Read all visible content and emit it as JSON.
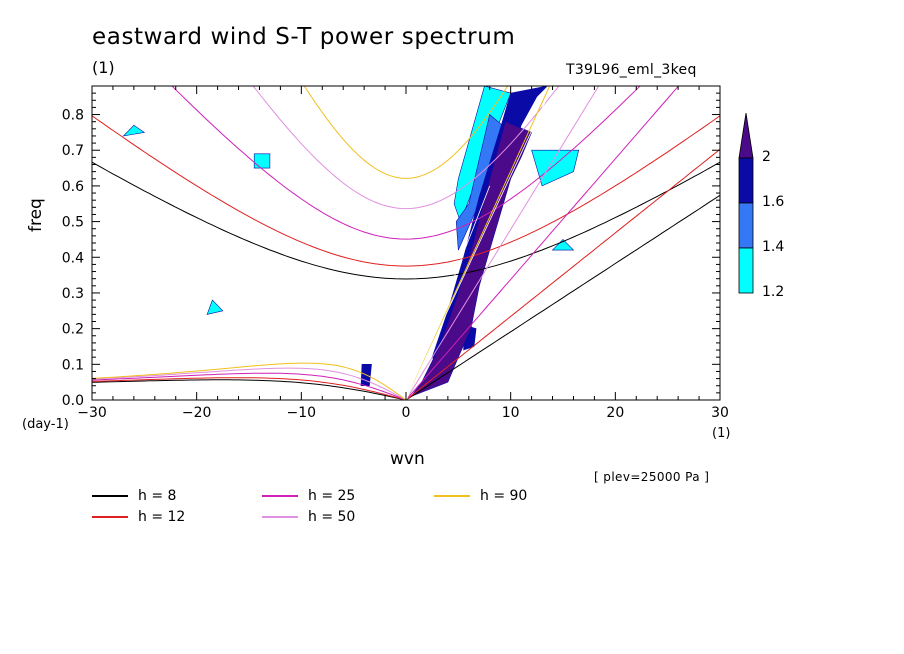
{
  "header": {
    "title": "eastward wind S-T power spectrum",
    "unit_top": "(1)",
    "experiment": "T39L96_eml_3keq"
  },
  "footer": {
    "plev": "[ plev=25000 Pa ]"
  },
  "chart_data": {
    "type": "heatmap",
    "title": "eastward wind S-T power spectrum",
    "xlabel": "wvn",
    "ylabel": "freq",
    "x_unit": "(1)",
    "y_unit": "(day-1)",
    "xlim": [
      -30,
      30
    ],
    "ylim": [
      0,
      0.88
    ],
    "x_ticks": [
      -30,
      -20,
      -10,
      0,
      10,
      20,
      30
    ],
    "y_ticks": [
      0.0,
      0.1,
      0.2,
      0.3,
      0.4,
      0.5,
      0.6,
      0.7,
      0.8
    ],
    "y_tick_labels": [
      "0.0",
      "0.1",
      "0.2",
      "0.3",
      "0.4",
      "0.5",
      "0.6",
      "0.7",
      "0.8"
    ],
    "colorbar": {
      "levels": [
        "1.2",
        "1.4",
        "1.6",
        "2"
      ],
      "colors": [
        "#00ffff",
        "#3478f6",
        "#0a0aa6",
        "#4b0a8a"
      ]
    },
    "shaded_regions": [
      {
        "level": 2,
        "points": [
          [
            0.5,
            0.01
          ],
          [
            4,
            0.05
          ],
          [
            5,
            0.12
          ],
          [
            6.2,
            0.2
          ],
          [
            7,
            0.32
          ],
          [
            8,
            0.42
          ],
          [
            9,
            0.52
          ],
          [
            10,
            0.62
          ],
          [
            11,
            0.68
          ],
          [
            12,
            0.75
          ],
          [
            9.5,
            0.78
          ],
          [
            8,
            0.62
          ],
          [
            6.5,
            0.45
          ],
          [
            5,
            0.3
          ],
          [
            3.2,
            0.15
          ],
          [
            1.5,
            0.05
          ]
        ]
      },
      {
        "level": 1.6,
        "points": [
          [
            3,
            0.1
          ],
          [
            5.5,
            0.17
          ],
          [
            6.5,
            0.3
          ],
          [
            7.5,
            0.42
          ],
          [
            8.5,
            0.55
          ],
          [
            10,
            0.66
          ],
          [
            11,
            0.77
          ],
          [
            12.5,
            0.85
          ],
          [
            13.5,
            0.88
          ],
          [
            10,
            0.86
          ],
          [
            9,
            0.76
          ],
          [
            7,
            0.57
          ],
          [
            5.5,
            0.4
          ],
          [
            4,
            0.25
          ],
          [
            2.5,
            0.12
          ]
        ]
      },
      {
        "level": 1.6,
        "points": [
          [
            -4.3,
            0.04
          ],
          [
            -3.5,
            0.04
          ],
          [
            -3.3,
            0.1
          ],
          [
            -4.2,
            0.1
          ]
        ]
      },
      {
        "level": 1.6,
        "points": [
          [
            5.5,
            0.14
          ],
          [
            6.5,
            0.15
          ],
          [
            6.7,
            0.2
          ],
          [
            5.6,
            0.21
          ]
        ]
      },
      {
        "level": 1.4,
        "points": [
          [
            5,
            0.42
          ],
          [
            10,
            0.75
          ],
          [
            8,
            0.8
          ],
          [
            6,
            0.55
          ],
          [
            4.8,
            0.5
          ]
        ]
      },
      {
        "level": 1.2,
        "points": [
          [
            5.2,
            0.5
          ],
          [
            10,
            0.86
          ],
          [
            7.5,
            0.88
          ],
          [
            5,
            0.62
          ],
          [
            4.6,
            0.55
          ]
        ]
      },
      {
        "level": 1.2,
        "points": [
          [
            13,
            0.6
          ],
          [
            16,
            0.64
          ],
          [
            16.5,
            0.7
          ],
          [
            12,
            0.7
          ]
        ]
      },
      {
        "level": 1.2,
        "points": [
          [
            -14.5,
            0.65
          ],
          [
            -13,
            0.65
          ],
          [
            -13,
            0.69
          ],
          [
            -14.5,
            0.69
          ]
        ]
      },
      {
        "level": 1.2,
        "points": [
          [
            -27,
            0.74
          ],
          [
            -25,
            0.75
          ],
          [
            -26,
            0.77
          ]
        ]
      },
      {
        "level": 1.2,
        "points": [
          [
            -19,
            0.24
          ],
          [
            -17.5,
            0.25
          ],
          [
            -18.5,
            0.28
          ]
        ]
      },
      {
        "level": 1.2,
        "points": [
          [
            14,
            0.42
          ],
          [
            16,
            0.42
          ],
          [
            15,
            0.45
          ]
        ]
      }
    ],
    "dispersion_curves": [
      {
        "name": "h = 8",
        "color": "#000000"
      },
      {
        "name": "h = 12",
        "color": "#e02020"
      },
      {
        "name": "h = 25",
        "color": "#d020b8"
      },
      {
        "name": "h = 50",
        "color": "#e090e0"
      },
      {
        "name": "h = 90",
        "color": "#f0c020"
      }
    ],
    "legend_position": "below"
  }
}
